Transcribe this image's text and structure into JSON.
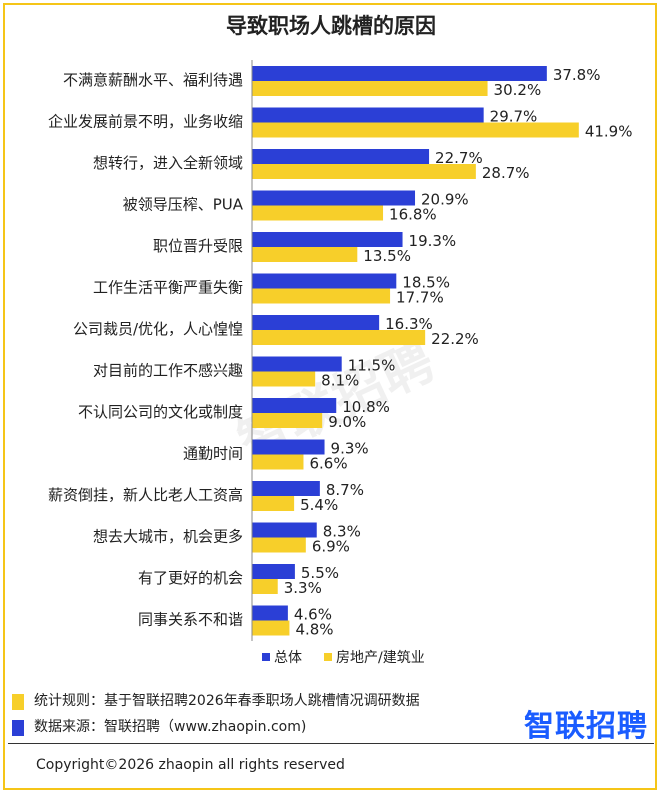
{
  "title": "导致职场人跳槽的原因",
  "watermark": "智联招聘",
  "colors": {
    "overall": "#2b3fd6",
    "realestate": "#f7cf2a",
    "frame": "#f5c518"
  },
  "chart_data": {
    "type": "bar",
    "orientation": "horizontal",
    "categories": [
      "不满意薪酬水平、福利待遇",
      "企业发展前景不明，业务收缩",
      "想转行，进入全新领域",
      "被领导压榨、PUA",
      "职位晋升受限",
      "工作生活平衡严重失衡",
      "公司裁员/优化，人心惶惶",
      "对目前的工作不感兴趣",
      "不认同公司的文化或制度",
      "通勤时间",
      "薪资倒挂，新人比老人工资高",
      "想去大城市，机会更多",
      "有了更好的机会",
      "同事关系不和谐"
    ],
    "series": [
      {
        "name": "总体",
        "color": "#2b3fd6",
        "values": [
          37.8,
          29.7,
          22.7,
          20.9,
          19.3,
          18.5,
          16.3,
          11.5,
          10.8,
          9.3,
          8.7,
          8.3,
          5.5,
          4.6
        ],
        "labels": [
          "37.8%",
          "29.7%",
          "22.7%",
          "20.9%",
          "19.3%",
          "18.5%",
          "16.3%",
          "11.5%",
          "10.8%",
          "9.3%",
          "8.7%",
          "8.3%",
          "5.5%",
          "4.6%"
        ]
      },
      {
        "name": "房地产/建筑业",
        "color": "#f7cf2a",
        "values": [
          30.2,
          41.9,
          28.7,
          16.8,
          13.5,
          17.7,
          22.2,
          8.1,
          9.0,
          6.6,
          5.4,
          6.9,
          3.3,
          4.8
        ],
        "labels": [
          "30.2%",
          "41.9%",
          "28.7%",
          "16.8%",
          "13.5%",
          "17.7%",
          "22.2%",
          "8.1%",
          "9.0%",
          "6.6%",
          "5.4%",
          "6.9%",
          "3.3%",
          "4.8%"
        ]
      }
    ],
    "xlim": [
      0,
      45
    ],
    "legend_position": "bottom"
  },
  "footer": {
    "rule_text": "统计规则：基于智联招聘2026年春季职场人跳槽情况调研数据",
    "source_text": "数据来源：智联招聘（www.zhaopin.com)",
    "logo": "智联招聘",
    "copyright": "Copyright©2026 zhaopin all rights reserved"
  }
}
